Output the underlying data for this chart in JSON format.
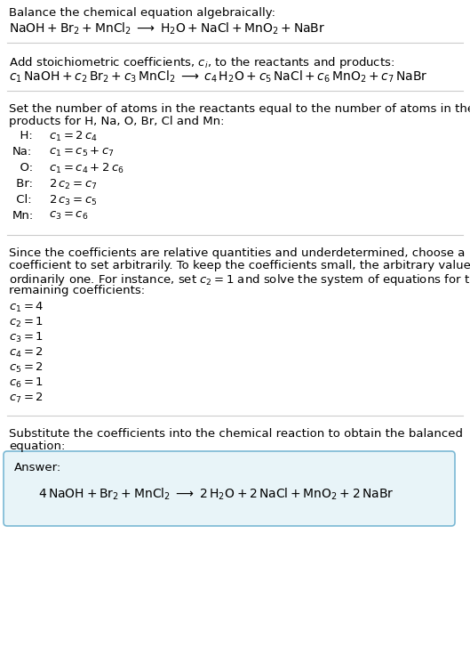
{
  "bg_color": "#ffffff",
  "text_color": "#000000",
  "line_color": "#bbbbbb",
  "section1_title": "Balance the chemical equation algebraically:",
  "section2_title": "Add stoichiometric coefficients, $c_i$, to the reactants and products:",
  "section3_title_1": "Set the number of atoms in the reactants equal to the number of atoms in the",
  "section3_title_2": "products for H, Na, O, Br, Cl and Mn:",
  "section3_equations": [
    [
      "  H:",
      "$c_1 = 2\\,c_4$"
    ],
    [
      "Na:",
      "$c_1 = c_5 + c_7$"
    ],
    [
      "  O:",
      "$c_1 = c_4 + 2\\,c_6$"
    ],
    [
      " Br:",
      "$2\\,c_2 = c_7$"
    ],
    [
      " Cl:",
      "$2\\,c_3 = c_5$"
    ],
    [
      "Mn:",
      "$c_3 = c_6$"
    ]
  ],
  "section4_lines": [
    "Since the coefficients are relative quantities and underdetermined, choose a",
    "coefficient to set arbitrarily. To keep the coefficients small, the arbitrary value is",
    "ordinarily one. For instance, set $c_2 = 1$ and solve the system of equations for the",
    "remaining coefficients:"
  ],
  "section4_coeffs": [
    "$c_1 = 4$",
    "$c_2 = 1$",
    "$c_3 = 1$",
    "$c_4 = 2$",
    "$c_5 = 2$",
    "$c_6 = 1$",
    "$c_7 = 2$"
  ],
  "section5_title_1": "Substitute the coefficients into the chemical reaction to obtain the balanced",
  "section5_title_2": "equation:",
  "answer_label": "Answer:",
  "answer_box_color": "#e8f4f8",
  "answer_box_border": "#7ab8d4",
  "fs_text": 9.5,
  "fs_eq": 9.5,
  "fs_mono": 9.5
}
